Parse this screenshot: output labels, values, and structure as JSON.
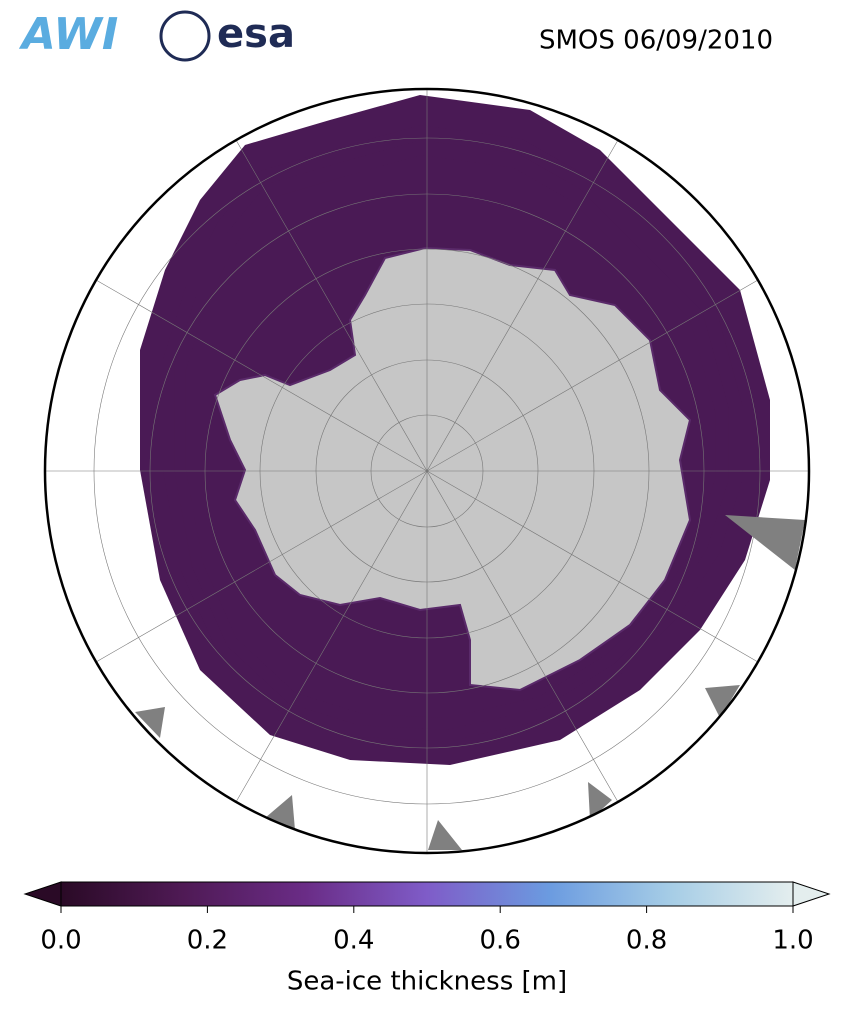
{
  "header": {
    "logos": [
      "AWI",
      "esa"
    ],
    "title": "SMOS 06/09/2010"
  },
  "colorbar": {
    "label": "Sea-ice thickness [m]",
    "lim": [
      0,
      1
    ],
    "ticks": [
      {
        "value": 0,
        "label": "0.0"
      },
      {
        "value": 0.2,
        "label": "0.2"
      },
      {
        "value": 0.4,
        "label": "0.4"
      },
      {
        "value": 0.6,
        "label": "0.6"
      },
      {
        "value": 0.8,
        "label": "0.8"
      },
      {
        "value": 1,
        "label": "1.0"
      }
    ],
    "colormap": [
      "#2a0a26",
      "#4f1a55",
      "#6a2c86",
      "#7f5cc8",
      "#6b9be0",
      "#a6cde6",
      "#e4eeee"
    ]
  }
}
